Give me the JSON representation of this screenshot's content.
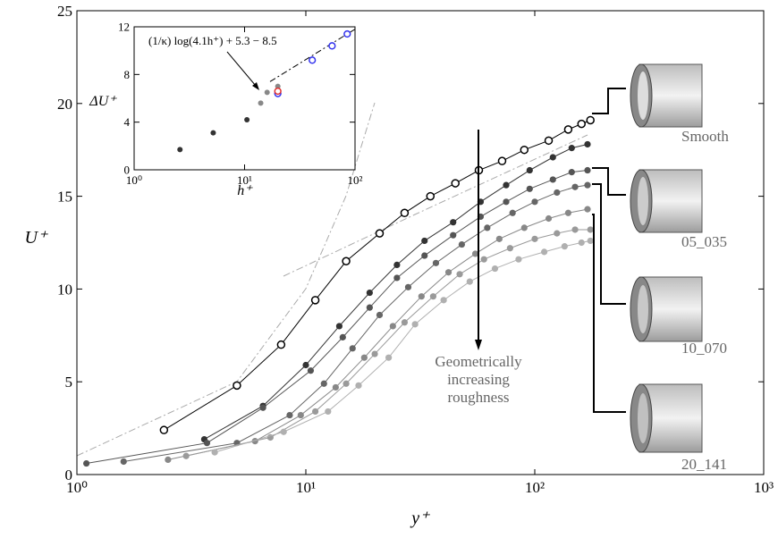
{
  "chart_data": [
    {
      "type": "line",
      "xlabel": "y⁺",
      "ylabel": "U⁺",
      "xscale": "log",
      "xlim": [
        1,
        1000
      ],
      "ylim": [
        0,
        25
      ],
      "xticks": [
        {
          "value": 1,
          "label": "10⁰"
        },
        {
          "value": 10,
          "label": "10¹"
        },
        {
          "value": 100,
          "label": "10²"
        },
        {
          "value": 1000,
          "label": "10³"
        }
      ],
      "yticks": [
        0,
        5,
        10,
        15,
        20,
        25
      ],
      "annotation": [
        "Geometrically",
        "increasing",
        "roughness"
      ],
      "series": [
        {
          "name": "Smooth",
          "color": "#000000",
          "marker": "open",
          "x": [
            2.4,
            5,
            7.8,
            11,
            15,
            21,
            27,
            35,
            45,
            57,
            72,
            90,
            115,
            140,
            160,
            175
          ],
          "values": [
            2.4,
            4.8,
            7.0,
            9.4,
            11.5,
            13.0,
            14.1,
            15.0,
            15.7,
            16.4,
            16.9,
            17.5,
            18.0,
            18.6,
            18.9,
            19.1
          ]
        },
        {
          "color": "#333333",
          "marker": "filled",
          "x": [
            3.6,
            6.5,
            10,
            14,
            19,
            25,
            33,
            44,
            58,
            75,
            95,
            120,
            145,
            170
          ],
          "values": [
            1.9,
            3.7,
            5.9,
            8.0,
            9.8,
            11.3,
            12.6,
            13.6,
            14.7,
            15.6,
            16.4,
            17.1,
            17.6,
            17.8
          ]
        },
        {
          "name": "05_035",
          "color": "#555555",
          "marker": "filled",
          "x": [
            1.1,
            3.7,
            6.5,
            10.5,
            14.5,
            19,
            25,
            33,
            44,
            58,
            75,
            95,
            120,
            145,
            170
          ],
          "values": [
            0.6,
            1.7,
            3.6,
            5.6,
            7.4,
            9.0,
            10.6,
            11.8,
            12.9,
            13.9,
            14.7,
            15.4,
            15.9,
            16.3,
            16.4
          ]
        },
        {
          "name": "10_070",
          "color": "#666666",
          "marker": "filled",
          "x": [
            1.6,
            5,
            8.5,
            12,
            16,
            21,
            28,
            37,
            48,
            62,
            80,
            100,
            125,
            150,
            170
          ],
          "values": [
            0.7,
            1.7,
            3.2,
            4.9,
            6.8,
            8.6,
            10.1,
            11.4,
            12.4,
            13.3,
            14.1,
            14.7,
            15.2,
            15.5,
            15.6
          ]
        },
        {
          "name": "20_141",
          "color": "#888888",
          "marker": "filled",
          "x": [
            2.5,
            6,
            9.5,
            13.5,
            18,
            24,
            32,
            42,
            55,
            70,
            90,
            115,
            140,
            170
          ],
          "values": [
            0.8,
            1.8,
            3.2,
            4.7,
            6.3,
            8.0,
            9.6,
            10.9,
            11.9,
            12.7,
            13.3,
            13.8,
            14.1,
            14.3
          ]
        },
        {
          "color": "#9a9a9a",
          "marker": "filled",
          "x": [
            3,
            7,
            11,
            15,
            20,
            27,
            36,
            47,
            60,
            78,
            100,
            125,
            150,
            175
          ],
          "values": [
            1.0,
            2.0,
            3.4,
            4.9,
            6.5,
            8.2,
            9.6,
            10.8,
            11.6,
            12.2,
            12.7,
            13.0,
            13.2,
            13.2
          ]
        },
        {
          "color": "#b0b0b0",
          "marker": "filled",
          "x": [
            4,
            8,
            12.5,
            17,
            23,
            30,
            40,
            52,
            67,
            85,
            110,
            135,
            160,
            175
          ],
          "values": [
            1.2,
            2.3,
            3.4,
            4.8,
            6.3,
            8.1,
            9.4,
            10.4,
            11.1,
            11.6,
            12.0,
            12.3,
            12.5,
            12.6
          ]
        }
      ]
    },
    {
      "type": "scatter",
      "xlabel": "h⁺",
      "ylabel": "ΔU⁺",
      "xscale": "log",
      "xlim": [
        1,
        100
      ],
      "ylim": [
        0,
        12
      ],
      "xticks": [
        {
          "value": 1,
          "label": "10⁰"
        },
        {
          "value": 10,
          "label": "10¹"
        },
        {
          "value": 100,
          "label": "10²"
        }
      ],
      "yticks": [
        0,
        4,
        8,
        12
      ],
      "annotation": "(1/κ) log(4.1h⁺) + 5.3 − 8.5",
      "fit_line": {
        "x": [
          17,
          100
        ],
        "values": [
          7.4,
          11.8
        ]
      },
      "series": [
        {
          "color": "#333333",
          "marker": "filled",
          "x": [
            2.6,
            5.2,
            10.5
          ],
          "values": [
            1.7,
            3.1,
            4.2
          ]
        },
        {
          "color": "#888888",
          "marker": "filled",
          "x": [
            14,
            16,
            20,
            20
          ],
          "values": [
            5.6,
            6.5,
            7.0,
            6.6
          ]
        },
        {
          "color": "#3333ee",
          "marker": "open",
          "x": [
            20,
            41,
            62,
            85
          ],
          "values": [
            6.4,
            9.2,
            10.4,
            11.4
          ]
        },
        {
          "color": "#e03030",
          "marker": "open",
          "x": [
            20
          ],
          "values": [
            6.6
          ]
        }
      ]
    }
  ]
}
